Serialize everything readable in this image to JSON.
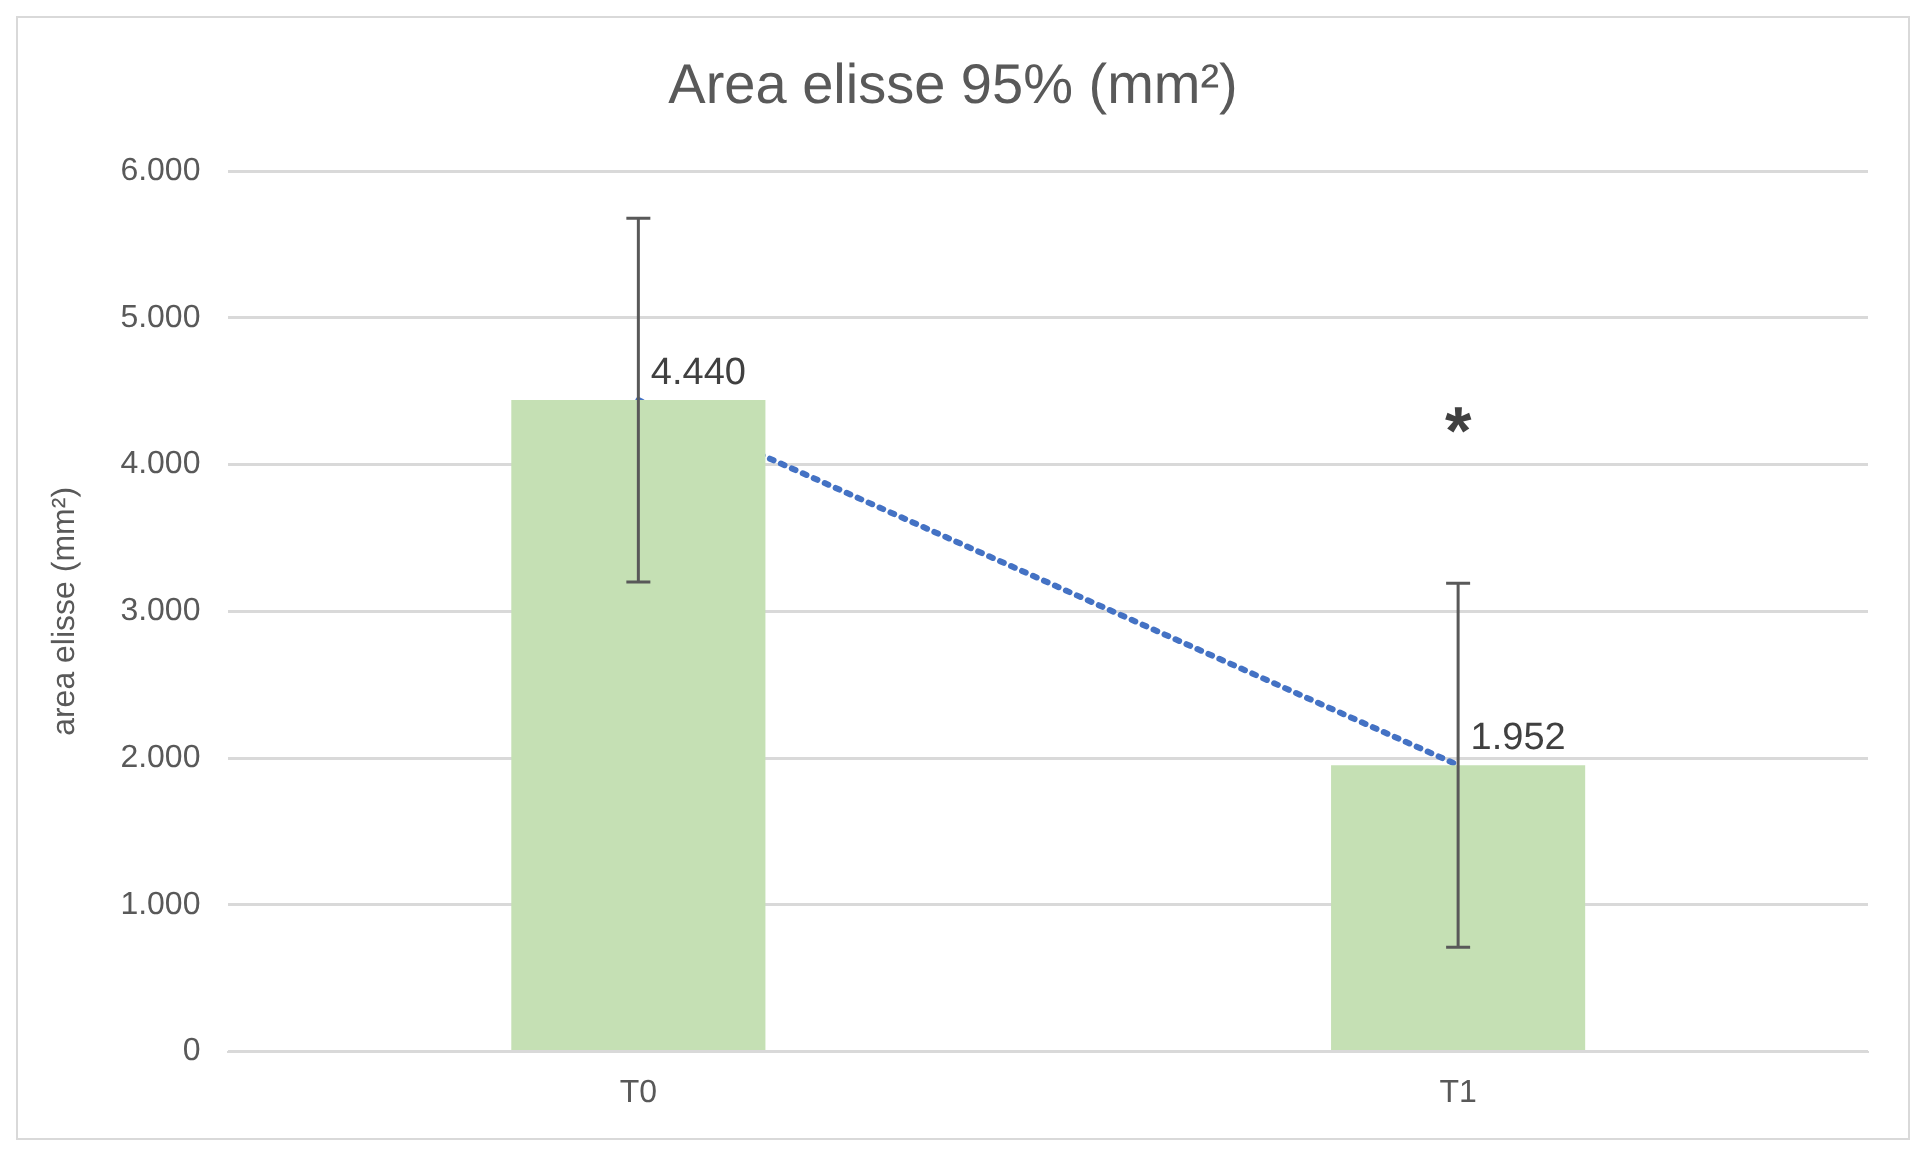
{
  "chart_data": {
    "type": "bar",
    "title": "Area elisse 95% (mm²)",
    "ylabel": "area elisse (mm²)",
    "categories": [
      "T0",
      "T1"
    ],
    "series": [
      {
        "color": "#c5e0b4",
        "values": [
          4440,
          1952
        ],
        "errors": [
          1240,
          1240
        ],
        "value_labels": [
          "4.440",
          "1.952"
        ]
      },
      {
        "type": "line",
        "color": "#4472c4",
        "values": [
          4440,
          1952
        ],
        "line_style": "dotted",
        "marker": "none"
      }
    ],
    "ylim": [
      0,
      6000
    ],
    "yticks": [
      0,
      {
        "value": 1000,
        "label": "1.000"
      },
      {
        "value": 2000,
        "label": "2.000"
      },
      {
        "value": 3000,
        "label": "3.000"
      },
      {
        "value": 4000,
        "label": "4.000"
      },
      {
        "value": 5000,
        "label": "5.000"
      },
      {
        "value": 6000,
        "label": "6.000"
      }
    ],
    "grid": "y",
    "legend": false,
    "annotations": [
      "*"
    ]
  }
}
